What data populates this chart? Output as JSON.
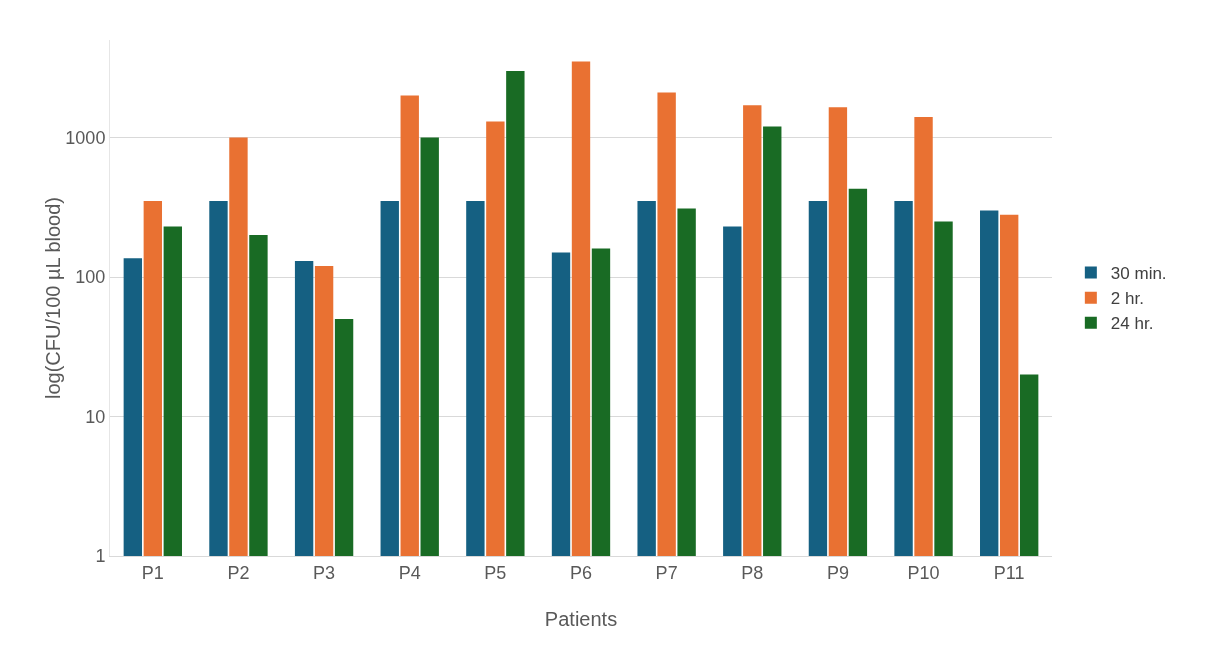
{
  "chart_data": {
    "type": "bar",
    "xlabel": "Patients",
    "ylabel": "log(CFU/100 µL blood)",
    "log": "y",
    "grid": "y",
    "legend": "right",
    "categories": [
      "P1",
      "P2",
      "P3",
      "P4",
      "P5",
      "P6",
      "P7",
      "P8",
      "P9",
      "P10",
      "P11"
    ],
    "ylim": [
      1,
      5000
    ],
    "yticks": [
      1,
      10,
      100,
      1000
    ],
    "series": [
      {
        "name": "30 min.",
        "color": "#156082",
        "values": [
          136,
          350,
          130,
          350,
          350,
          150,
          350,
          230,
          350,
          350,
          300
        ]
      },
      {
        "name": "2 hr.",
        "color": "#e97132",
        "values": [
          350,
          1000,
          120,
          2000,
          1300,
          3500,
          2100,
          1700,
          1650,
          1400,
          280
        ]
      },
      {
        "name": "24 hr.",
        "color": "#196b24",
        "values": [
          230,
          200,
          50,
          1000,
          3000,
          160,
          310,
          1200,
          430,
          250,
          20
        ]
      }
    ]
  }
}
